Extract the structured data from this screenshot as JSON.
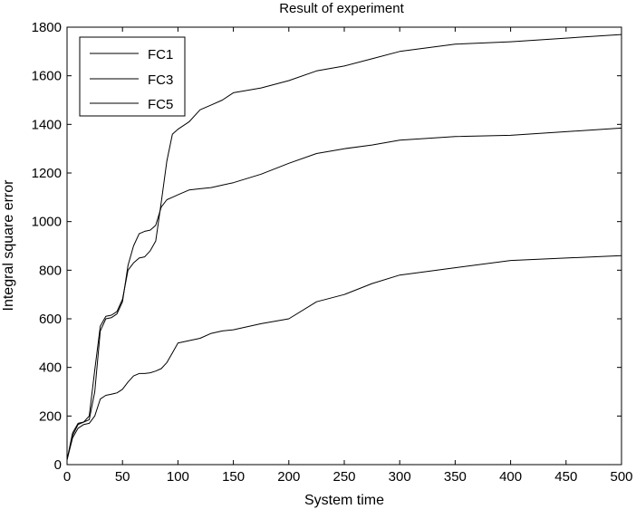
{
  "chart_data": {
    "type": "line",
    "title": "Result of experiment",
    "xlabel": "System time",
    "ylabel": "Integral square error",
    "xlim": [
      0,
      500
    ],
    "ylim": [
      0,
      1800
    ],
    "xticks": [
      0,
      50,
      100,
      150,
      200,
      250,
      300,
      350,
      400,
      450,
      500
    ],
    "yticks": [
      0,
      200,
      400,
      600,
      800,
      1000,
      1200,
      1400,
      1600,
      1800
    ],
    "grid": false,
    "legend_position": "top-left",
    "series": [
      {
        "name": "FC1",
        "color": "#000000",
        "x": [
          0,
          5,
          10,
          15,
          20,
          25,
          30,
          35,
          40,
          45,
          50,
          55,
          60,
          65,
          70,
          75,
          80,
          85,
          90,
          95,
          100,
          110,
          120,
          130,
          140,
          150,
          175,
          200,
          225,
          250,
          275,
          300,
          350,
          400,
          450,
          500
        ],
        "y": [
          20,
          120,
          165,
          175,
          200,
          390,
          570,
          610,
          615,
          630,
          680,
          800,
          830,
          850,
          855,
          880,
          920,
          1080,
          1250,
          1360,
          1380,
          1410,
          1460,
          1480,
          1500,
          1530,
          1550,
          1580,
          1620,
          1640,
          1670,
          1700,
          1730,
          1740,
          1755,
          1770
        ]
      },
      {
        "name": "FC3",
        "color": "#000000",
        "x": [
          0,
          5,
          10,
          15,
          20,
          25,
          30,
          35,
          40,
          45,
          50,
          55,
          60,
          65,
          70,
          75,
          80,
          85,
          90,
          95,
          100,
          110,
          120,
          130,
          140,
          150,
          175,
          200,
          225,
          250,
          275,
          300,
          350,
          400,
          450,
          500
        ],
        "y": [
          20,
          130,
          170,
          175,
          185,
          300,
          550,
          600,
          605,
          620,
          670,
          820,
          900,
          950,
          960,
          965,
          985,
          1060,
          1090,
          1100,
          1110,
          1130,
          1135,
          1140,
          1150,
          1160,
          1195,
          1240,
          1280,
          1300,
          1315,
          1335,
          1350,
          1355,
          1370,
          1385
        ]
      },
      {
        "name": "FC5",
        "color": "#000000",
        "x": [
          0,
          5,
          10,
          15,
          20,
          25,
          30,
          35,
          40,
          45,
          50,
          55,
          60,
          65,
          70,
          75,
          80,
          85,
          90,
          95,
          100,
          110,
          120,
          130,
          140,
          150,
          175,
          200,
          225,
          250,
          275,
          300,
          350,
          400,
          450,
          500
        ],
        "y": [
          20,
          110,
          150,
          165,
          170,
          200,
          270,
          285,
          290,
          295,
          310,
          340,
          365,
          375,
          375,
          378,
          385,
          395,
          420,
          460,
          500,
          510,
          520,
          540,
          550,
          555,
          580,
          600,
          670,
          700,
          745,
          780,
          810,
          840,
          850,
          860
        ]
      }
    ]
  }
}
